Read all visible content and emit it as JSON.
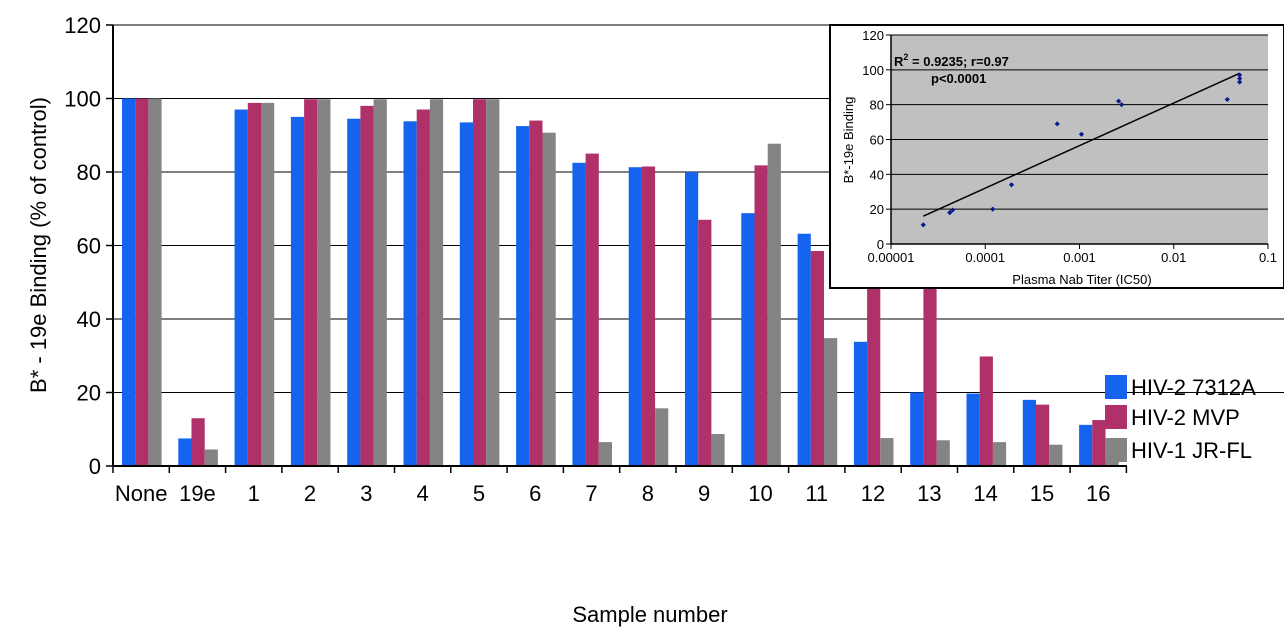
{
  "chart_data": [
    {
      "type": "bar",
      "ylabel": "B* - 19e Binding (% of control)",
      "xlabel": "Sample number",
      "ylim": [
        0,
        120
      ],
      "yticks": [
        0,
        20,
        40,
        60,
        80,
        100,
        120
      ],
      "grid": true,
      "legend_position": "right",
      "categories": [
        "None",
        "19e",
        "1",
        "2",
        "3",
        "4",
        "5",
        "6",
        "7",
        "8",
        "9",
        "10",
        "11",
        "12",
        "13",
        "14",
        "15",
        "16"
      ],
      "series": [
        {
          "name": "HIV-2 7312A",
          "color": "#1464f0",
          "values": [
            100,
            7.5,
            97,
            95,
            94.5,
            93.8,
            93.5,
            92.5,
            82.5,
            81.3,
            80,
            68.8,
            63.2,
            33.8,
            20,
            19.7,
            18,
            11.2
          ]
        },
        {
          "name": "HIV-2 MVP",
          "color": "#b0306a",
          "values": [
            100,
            13,
            98.8,
            99.8,
            98,
            97,
            99.8,
            94,
            85,
            81.5,
            67,
            81.8,
            58.5,
            51,
            54,
            29.8,
            16.7,
            12.5
          ]
        },
        {
          "name": "HIV-1 JR-FL",
          "color": "#848484",
          "values": [
            100,
            4.5,
            98.8,
            99.8,
            99.8,
            99.8,
            99.8,
            90.7,
            6.5,
            15.7,
            8.7,
            87.7,
            34.8,
            7.6,
            7,
            6.5,
            5.8,
            3.6
          ]
        }
      ]
    },
    {
      "type": "scatter",
      "xscale": "log",
      "xlabel": "Plasma Nab Titer (IC50)",
      "ylabel": "B*-19e Binding",
      "xlim": [
        1e-05,
        0.1
      ],
      "ylim": [
        0,
        120
      ],
      "xtick_labels": [
        "0.00001",
        "0.0001",
        "0.001",
        "0.01",
        "0.1"
      ],
      "yticks": [
        0,
        20,
        40,
        60,
        80,
        100,
        120
      ],
      "annotation_r2_prefix": "R",
      "annotation_r2_sup": "2",
      "annotation_r2_rest": " = 0.9235; r=0.97",
      "annotation_p": "p<0.0001",
      "grid": true,
      "background": "#c0c0c0",
      "point_color": "#0a1a8c",
      "points": [
        {
          "x": 2.2e-05,
          "y": 11
        },
        {
          "x": 4.2e-05,
          "y": 18
        },
        {
          "x": 4.5e-05,
          "y": 19.5
        },
        {
          "x": 0.00012,
          "y": 20
        },
        {
          "x": 0.00019,
          "y": 34
        },
        {
          "x": 0.00058,
          "y": 69
        },
        {
          "x": 0.00105,
          "y": 63
        },
        {
          "x": 0.0026,
          "y": 82
        },
        {
          "x": 0.0028,
          "y": 80
        },
        {
          "x": 0.037,
          "y": 83
        },
        {
          "x": 0.05,
          "y": 93
        },
        {
          "x": 0.05,
          "y": 95
        },
        {
          "x": 0.05,
          "y": 97
        }
      ],
      "trendline": {
        "x": [
          2.2e-05,
          0.05
        ],
        "y": [
          16,
          98
        ]
      }
    }
  ]
}
